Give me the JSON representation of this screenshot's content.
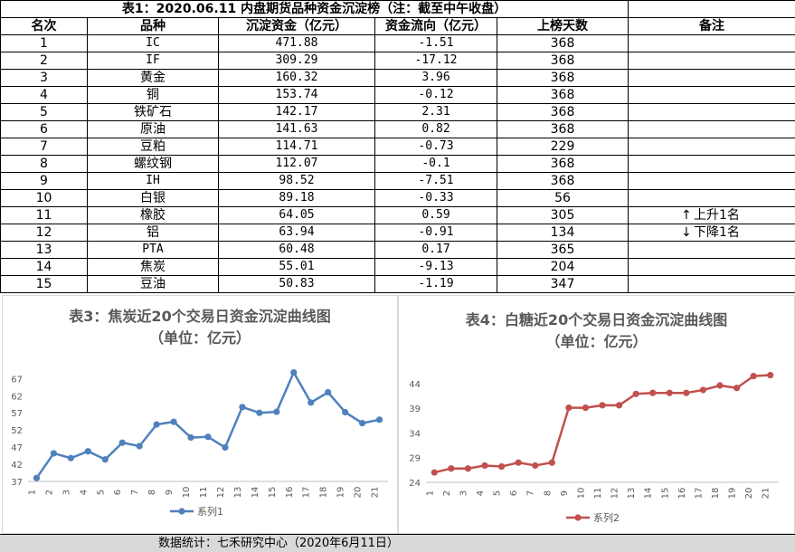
{
  "table": {
    "title": "表1：2020.06.11 内盘期货品种资金沉淀榜（注：截至中午收盘）",
    "headers": [
      "名次",
      "品种",
      "沉淀资金（亿元）",
      "资金流向（亿元）",
      "上榜天数",
      "备注"
    ],
    "rows": [
      {
        "rank": "1",
        "name": "IC",
        "deposit": "471.88",
        "flow": "-1.51",
        "days": "368"
      },
      {
        "rank": "2",
        "name": "IF",
        "deposit": "309.29",
        "flow": "-17.12",
        "days": "368"
      },
      {
        "rank": "3",
        "name": "黄金",
        "deposit": "160.32",
        "flow": "3.96",
        "days": "368"
      },
      {
        "rank": "4",
        "name": "铜",
        "deposit": "153.74",
        "flow": "-0.12",
        "days": "368"
      },
      {
        "rank": "5",
        "name": "铁矿石",
        "deposit": "142.17",
        "flow": "2.31",
        "days": "368"
      },
      {
        "rank": "6",
        "name": "原油",
        "deposit": "141.63",
        "flow": "0.82",
        "days": "368"
      },
      {
        "rank": "7",
        "name": "豆粕",
        "deposit": "114.71",
        "flow": "-0.73",
        "days": "229"
      },
      {
        "rank": "8",
        "name": "螺纹钢",
        "deposit": "112.07",
        "flow": "-0.1",
        "days": "368"
      },
      {
        "rank": "9",
        "name": "IH",
        "deposit": "98.52",
        "flow": "-7.51",
        "days": "368"
      },
      {
        "rank": "10",
        "name": "白银",
        "deposit": "89.18",
        "flow": "-0.33",
        "days": "56"
      },
      {
        "rank": "11",
        "name": "橡胶",
        "deposit": "64.05",
        "flow": "0.59",
        "days": "305"
      },
      {
        "rank": "12",
        "name": "铝",
        "deposit": "63.94",
        "flow": "-0.91",
        "days": "134"
      },
      {
        "rank": "13",
        "name": "PTA",
        "deposit": "60.48",
        "flow": "0.17",
        "days": "365"
      },
      {
        "rank": "14",
        "name": "焦炭",
        "deposit": "55.01",
        "flow": "-9.13",
        "days": "204"
      },
      {
        "rank": "15",
        "name": "豆油",
        "deposit": "50.83",
        "flow": "-1.19",
        "days": "347"
      }
    ],
    "remarks": {
      "up": "上升1名",
      "down": "下降1名"
    }
  },
  "chart_data": [
    {
      "type": "line",
      "title": "表3：焦炭近20个交易日资金沉淀曲线图",
      "subtitle": "（单位：亿元）",
      "x": [
        "1",
        "2",
        "3",
        "4",
        "5",
        "6",
        "7",
        "8",
        "9",
        "10",
        "11",
        "12",
        "13",
        "14",
        "15",
        "16",
        "17",
        "18",
        "19",
        "20",
        "21"
      ],
      "series": [
        {
          "name": "系列1",
          "color": "#4f81bd",
          "values": [
            38,
            45.2,
            43.8,
            45.8,
            43.4,
            48.3,
            47.3,
            53.6,
            54.4,
            49.8,
            50,
            46.9,
            58.7,
            57,
            57.3,
            68.8,
            60,
            63,
            57.2,
            54,
            55
          ]
        }
      ],
      "yticks": [
        37,
        42,
        47,
        52,
        57,
        62,
        67
      ],
      "ylim": [
        37,
        70
      ],
      "legend": "bottom",
      "grid": false
    },
    {
      "type": "line",
      "title": "表4：白糖近20个交易日资金沉淀曲线图",
      "subtitle": "（单位：亿元）",
      "x": [
        "1",
        "2",
        "3",
        "4",
        "5",
        "6",
        "7",
        "8",
        "9",
        "10",
        "11",
        "12",
        "13",
        "14",
        "15",
        "16",
        "17",
        "18",
        "19",
        "20",
        "21"
      ],
      "series": [
        {
          "name": "系列2",
          "color": "#c0504d",
          "values": [
            26,
            26.8,
            26.8,
            27.4,
            27.2,
            28,
            27.4,
            28,
            39.1,
            39.1,
            39.6,
            39.6,
            41.9,
            42.1,
            42.1,
            42.1,
            42.7,
            43.6,
            43.1,
            45.5,
            45.7
          ]
        }
      ],
      "yticks": [
        24,
        29,
        34,
        39,
        44
      ],
      "ylim": [
        24,
        48
      ],
      "legend": "bottom",
      "grid": false
    }
  ],
  "footer": "数据统计：七禾研究中心（2020年6月11日）"
}
